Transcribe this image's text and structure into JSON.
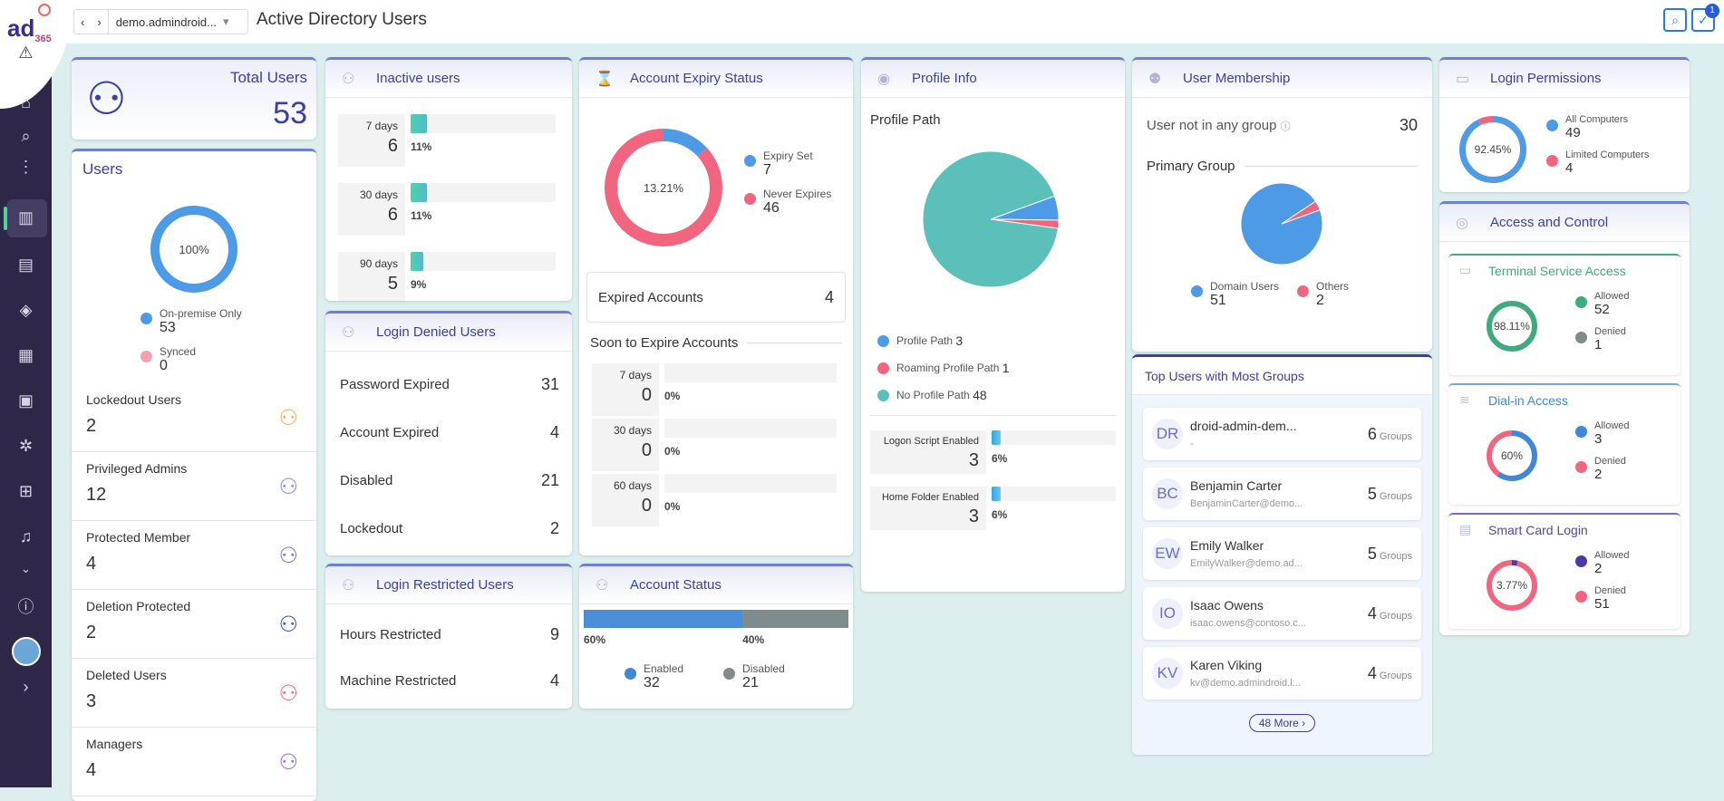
{
  "app": {
    "logo": "ad",
    "logo_sup": "365",
    "title": "Active Directory Users",
    "domain": "demo.admindroid...",
    "notification_count": "1"
  },
  "sidebar": {
    "icons": [
      "warning-icon",
      "home-icon",
      "search-icon",
      "more-icon",
      "dashboard-icon",
      "reports-icon",
      "audit-icon",
      "analytics-icon",
      "file-search-icon",
      "groups-icon",
      "management-icon",
      "alerts-icon",
      "chevron-down-icon",
      "help-icon",
      "avatar",
      "chevron-right-icon"
    ]
  },
  "total": {
    "label": "Total Users",
    "value": "53"
  },
  "users": {
    "title": "Users",
    "donut_label": "100%",
    "legend": [
      {
        "label": "On-premise Only",
        "value": "53",
        "color": "#4d9be6"
      },
      {
        "label": "Synced",
        "value": "0",
        "color": "#f5a0b0"
      }
    ],
    "stats": [
      {
        "label": "Lockedout Users",
        "value": "2",
        "icon": "lock-user-icon",
        "color": "#f0b060"
      },
      {
        "label": "Privileged Admins",
        "value": "12",
        "icon": "star-user-icon",
        "color": "#8a8fd8"
      },
      {
        "label": "Protected Member",
        "value": "4",
        "icon": "shield-users-icon",
        "color": "#8a6fd8"
      },
      {
        "label": "Deletion Protected",
        "value": "2",
        "icon": "shield-alert-icon",
        "color": "#3a5ab8"
      },
      {
        "label": "Deleted Users",
        "value": "3",
        "icon": "remove-user-icon",
        "color": "#f07080"
      },
      {
        "label": "Managers",
        "value": "4",
        "icon": "manager-icon",
        "color": "#a070d8"
      }
    ]
  },
  "inactive": {
    "title": "Inactive users",
    "items": [
      {
        "label": "7 days",
        "value": "6",
        "pct": "11%",
        "fill": 11
      },
      {
        "label": "30 days",
        "value": "6",
        "pct": "11%",
        "fill": 11
      },
      {
        "label": "90 days",
        "value": "5",
        "pct": "9%",
        "fill": 9
      }
    ]
  },
  "denied": {
    "title": "Login Denied Users",
    "rows": [
      {
        "label": "Password Expired",
        "value": "31"
      },
      {
        "label": "Account Expired",
        "value": "4"
      },
      {
        "label": "Disabled",
        "value": "21"
      },
      {
        "label": "Lockedout",
        "value": "2"
      }
    ]
  },
  "restricted": {
    "title": "Login Restricted Users",
    "rows": [
      {
        "label": "Hours Restricted",
        "value": "9"
      },
      {
        "label": "Machine Restricted",
        "value": "4"
      }
    ]
  },
  "expiry": {
    "title": "Account Expiry Status",
    "donut_label": "13.21%",
    "legend": [
      {
        "label": "Expiry Set",
        "value": "7",
        "color": "#4d9be6"
      },
      {
        "label": "Never Expires",
        "value": "46",
        "color": "#f2657f"
      }
    ],
    "expired_label": "Expired Accounts",
    "expired_value": "4",
    "soon_title": "Soon to Expire Accounts",
    "soon": [
      {
        "label": "7 days",
        "value": "0",
        "pct": "0%",
        "fill": 0
      },
      {
        "label": "30 days",
        "value": "0",
        "pct": "0%",
        "fill": 0
      },
      {
        "label": "60 days",
        "value": "0",
        "pct": "0%",
        "fill": 0
      }
    ]
  },
  "status": {
    "title": "Account Status",
    "segments": [
      {
        "pct": "60%",
        "value": 60,
        "color": "#4a8fd6"
      },
      {
        "pct": "40%",
        "value": 40,
        "color": "#7f8c8d"
      }
    ],
    "legend": [
      {
        "label": "Enabled",
        "value": "32",
        "color": "#3f88d6"
      },
      {
        "label": "Disabled",
        "value": "21",
        "color": "#7f8c8d"
      }
    ]
  },
  "profile": {
    "title": "Profile Info",
    "subtitle": "Profile Path",
    "legend": [
      {
        "label": "Profile Path",
        "value": "3",
        "color": "#4d9be6"
      },
      {
        "label": "Roaming Profile Path",
        "value": "1",
        "color": "#f2657f"
      },
      {
        "label": "No Profile Path",
        "value": "48",
        "color": "#5bbfba"
      }
    ],
    "bars": [
      {
        "label": "Logon Script Enabled",
        "value": "3",
        "pct": "6%",
        "fill": 6
      },
      {
        "label": "Home Folder Enabled",
        "value": "3",
        "pct": "6%",
        "fill": 6
      }
    ]
  },
  "membership": {
    "title": "User Membership",
    "nogroup_label": "User not in any group",
    "nogroup_value": "30",
    "primary_title": "Primary Group",
    "legend": [
      {
        "label": "Domain Users",
        "value": "51",
        "color": "#4d9be6"
      },
      {
        "label": "Others",
        "value": "2",
        "color": "#f2657f"
      }
    ]
  },
  "topusers": {
    "title": "Top Users with Most Groups",
    "groups_label": "Groups",
    "more": "48 More",
    "items": [
      {
        "initials": "DR",
        "name": "droid-admin-dem...",
        "email": "-",
        "count": "6"
      },
      {
        "initials": "BC",
        "name": "Benjamin Carter",
        "email": "BenjaminCarter@demo...",
        "count": "5"
      },
      {
        "initials": "EW",
        "name": "Emily Walker",
        "email": "EmilyWalker@demo.ad...",
        "count": "5"
      },
      {
        "initials": "IO",
        "name": "Isaac Owens",
        "email": "isaac.owens@contoso.c...",
        "count": "4"
      },
      {
        "initials": "KV",
        "name": "Karen Viking",
        "email": "kv@demo.admindroid.l...",
        "count": "4"
      }
    ]
  },
  "permissions": {
    "title": "Login Permissions",
    "donut_label": "92.45%",
    "legend": [
      {
        "label": "All Computers",
        "value": "49",
        "color": "#4d9be6"
      },
      {
        "label": "Limited Computers",
        "value": "4",
        "color": "#f2657f"
      }
    ]
  },
  "access": {
    "title": "Access and Control",
    "terminal": {
      "title": "Terminal Service Access",
      "donut_label": "98.11%",
      "legend": [
        {
          "label": "Allowed",
          "value": "52",
          "color": "#3dab7f"
        },
        {
          "label": "Denied",
          "value": "1",
          "color": "#7f8c8d"
        }
      ]
    },
    "dialin": {
      "title": "Dial-in Access",
      "donut_label": "60%",
      "legend": [
        {
          "label": "Allowed",
          "value": "3",
          "color": "#3f88d6"
        },
        {
          "label": "Denied",
          "value": "2",
          "color": "#f2657f"
        }
      ]
    },
    "smartcard": {
      "title": "Smart Card Login",
      "donut_label": "3.77%",
      "legend": [
        {
          "label": "Allowed",
          "value": "2",
          "color": "#4b3aa8"
        },
        {
          "label": "Denied",
          "value": "51",
          "color": "#f2657f"
        }
      ]
    }
  }
}
